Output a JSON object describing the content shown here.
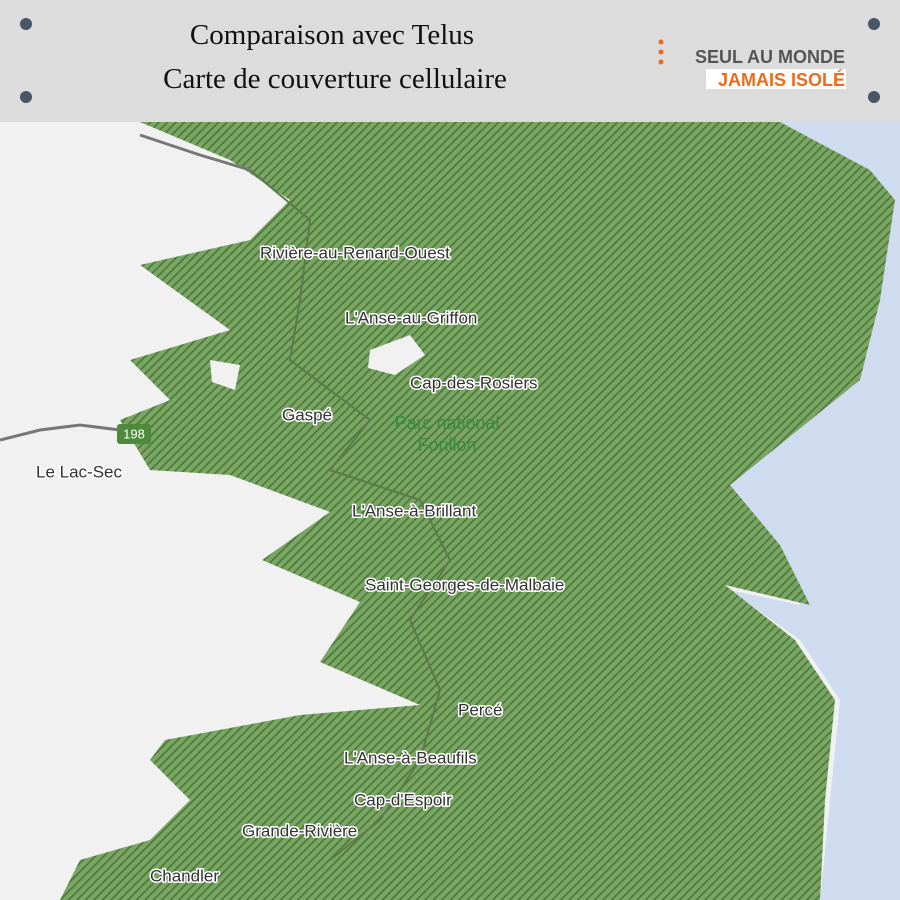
{
  "header": {
    "title_lines": [
      "Comparaison avec Telus",
      "Carte de couverture cellulaire"
    ],
    "logo": {
      "line1": "SEUL AU MONDE",
      "line2": "JAMAIS ISOLÉ"
    }
  },
  "map": {
    "places": [
      "Rivière-au-Renard-Ouest",
      "L'Anse-au-Griffon",
      "Cap-des-Rosiers",
      "Gaspé",
      "Le Lac-Sec",
      "L'Anse-à-Brillant",
      "Saint-Georges-de-Malbaie",
      "Percé",
      "L'Anse-à-Beaufils",
      "Cap-d'Espoir",
      "Grande-Rivière",
      "Chandler"
    ],
    "park": [
      "Parc national",
      "Forillon"
    ],
    "roads": [
      "198"
    ]
  }
}
